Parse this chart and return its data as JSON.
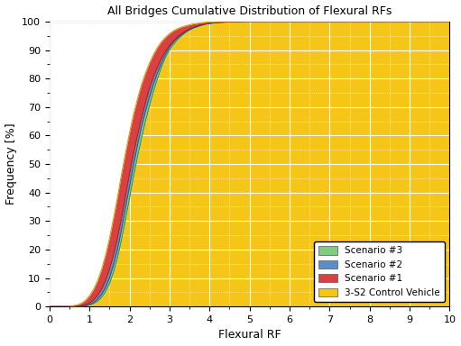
{
  "title": "All Bridges Cumulative Distribution of Flexural RFs",
  "xlabel": "Flexural RF",
  "ylabel": "Frequency [%]",
  "xlim": [
    0,
    10
  ],
  "ylim": [
    0,
    100
  ],
  "xticks": [
    0,
    1,
    2,
    3,
    4,
    5,
    6,
    7,
    8,
    9,
    10
  ],
  "yticks": [
    0,
    10,
    20,
    30,
    40,
    50,
    60,
    70,
    80,
    90,
    100
  ],
  "bg_white": "#ffffff",
  "bg_yellow": "#f5c518",
  "grid_major_color": "#cccccc",
  "grid_minor_color": "#cccccc",
  "colors": {
    "control": "#f5c518",
    "scenario1": "#d94040",
    "scenario2": "#5b8ec4",
    "scenario3": "#80cc80"
  },
  "legend_labels": [
    "Scenario #3",
    "Scenario #2",
    "Scenario #1",
    "3-S2 Control Vehicle"
  ],
  "legend_colors": [
    "#80cc80",
    "#5b8ec4",
    "#d94040",
    "#f5c518"
  ],
  "curve_x": [
    0.0,
    0.4,
    0.5,
    0.6,
    0.7,
    0.8,
    0.9,
    1.0,
    1.1,
    1.2,
    1.3,
    1.4,
    1.5,
    1.6,
    1.7,
    1.8,
    1.9,
    2.0,
    2.1,
    2.2,
    2.3,
    2.4,
    2.5,
    2.6,
    2.7,
    2.8,
    2.9,
    3.0,
    3.1,
    3.2,
    3.3,
    3.4,
    3.5,
    3.6,
    3.7,
    3.8,
    3.9,
    4.0,
    4.2,
    4.4,
    4.6,
    4.8,
    5.0,
    5.5,
    6.0,
    10.0
  ],
  "control_y": [
    0.0,
    0.05,
    0.1,
    0.3,
    0.6,
    1.2,
    2.2,
    3.8,
    6.0,
    9.0,
    13.0,
    18.0,
    24.0,
    31.0,
    38.5,
    46.5,
    54.0,
    61.0,
    67.5,
    73.0,
    78.0,
    82.0,
    85.5,
    88.5,
    91.0,
    93.0,
    94.5,
    95.8,
    96.8,
    97.5,
    98.1,
    98.5,
    98.9,
    99.2,
    99.4,
    99.6,
    99.75,
    99.85,
    99.93,
    99.97,
    99.99,
    100.0,
    100.0,
    100.0,
    100.0,
    100.0
  ],
  "scenario1_y": [
    0.0,
    0.0,
    0.02,
    0.05,
    0.1,
    0.3,
    0.6,
    1.2,
    2.2,
    3.8,
    6.0,
    9.0,
    13.0,
    18.0,
    24.0,
    31.0,
    38.5,
    46.5,
    53.5,
    60.0,
    66.0,
    71.5,
    76.5,
    80.5,
    84.0,
    87.0,
    89.5,
    91.5,
    93.2,
    94.6,
    95.7,
    96.6,
    97.4,
    98.0,
    98.5,
    98.9,
    99.2,
    99.4,
    99.7,
    99.85,
    99.92,
    99.97,
    100.0,
    100.0,
    100.0,
    100.0
  ],
  "scenario2_y": [
    0.0,
    0.0,
    0.01,
    0.03,
    0.06,
    0.15,
    0.35,
    0.7,
    1.4,
    2.5,
    4.2,
    6.5,
    10.0,
    14.5,
    20.0,
    27.0,
    34.5,
    42.0,
    49.5,
    56.5,
    63.0,
    68.5,
    73.5,
    78.0,
    82.0,
    85.5,
    88.5,
    91.0,
    92.8,
    94.2,
    95.4,
    96.4,
    97.2,
    97.8,
    98.3,
    98.7,
    99.1,
    99.35,
    99.65,
    99.8,
    99.9,
    99.96,
    100.0,
    100.0,
    100.0,
    100.0
  ],
  "scenario3_y": [
    0.0,
    0.0,
    0.005,
    0.02,
    0.04,
    0.1,
    0.2,
    0.5,
    1.0,
    1.8,
    3.2,
    5.2,
    8.0,
    12.0,
    17.0,
    23.5,
    30.5,
    38.0,
    45.5,
    52.5,
    59.0,
    65.0,
    70.5,
    75.5,
    80.0,
    84.0,
    87.5,
    90.0,
    92.0,
    93.6,
    95.0,
    96.1,
    97.0,
    97.7,
    98.2,
    98.7,
    99.05,
    99.3,
    99.6,
    99.75,
    99.87,
    99.94,
    100.0,
    100.0,
    100.0,
    100.0
  ]
}
